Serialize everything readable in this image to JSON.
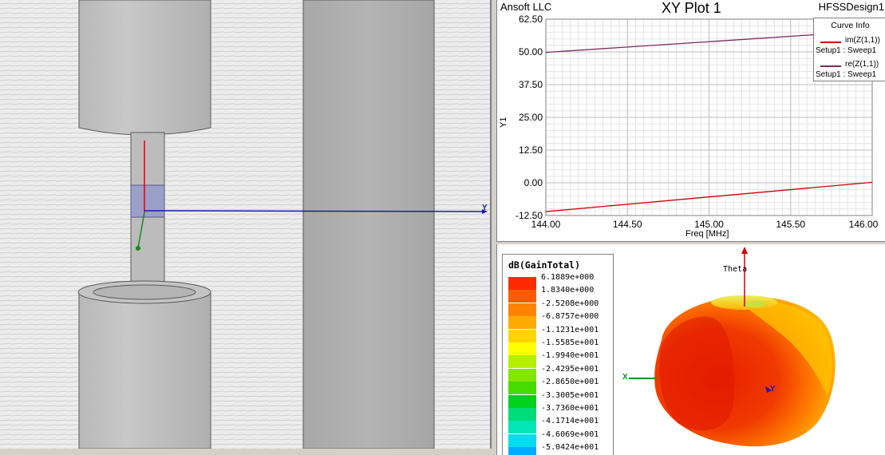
{
  "model_view": {
    "axis_y_label": "Y"
  },
  "xy_plot": {
    "company": "Ansoft LLC",
    "title": "XY Plot 1",
    "design": "HFSSDesign1",
    "ylabel": "Y1",
    "xlabel": "Freq [MHz]",
    "legend": {
      "title": "Curve Info",
      "entries": [
        {
          "name": "im(Z(1,1))",
          "sub": "Setup1 : Sweep1",
          "color": "#cc0000"
        },
        {
          "name": "re(Z(1,1))",
          "sub": "Setup1 : Sweep1",
          "color": "#7a2a5a"
        }
      ]
    },
    "y_ticks": [
      "62.50",
      "50.00",
      "37.50",
      "25.00",
      "12.50",
      "0.00",
      "-12.50"
    ],
    "x_ticks": [
      "144.00",
      "144.50",
      "145.00",
      "145.50",
      "146.00"
    ]
  },
  "chart_data": {
    "type": "line",
    "title": "XY Plot 1",
    "xlabel": "Freq [MHz]",
    "ylabel": "Y1",
    "xlim": [
      144.0,
      146.0
    ],
    "ylim": [
      -12.5,
      62.5
    ],
    "grid": true,
    "legend_position": "top-right",
    "series": [
      {
        "name": "im(Z(1,1))",
        "color": "#cc0000",
        "x": [
          144.0,
          146.0
        ],
        "y": [
          -11.0,
          0.2
        ]
      },
      {
        "name": "re(Z(1,1))",
        "color": "#7a2a5a",
        "x": [
          144.0,
          146.0
        ],
        "y": [
          49.8,
          58.0
        ]
      }
    ]
  },
  "polar_view": {
    "colorbar_title": "dB(GainTotal)",
    "theta_label": "Theta",
    "x_axis_label": "X",
    "y_axis_label": "Y",
    "levels": [
      {
        "label": "6.1889e+000",
        "color": "#ff2a00"
      },
      {
        "label": "1.8340e+000",
        "color": "#ff5a00"
      },
      {
        "label": "-2.5208e+000",
        "color": "#ff8200"
      },
      {
        "label": "-6.8757e+000",
        "color": "#ffaa00"
      },
      {
        "label": "-1.1231e+001",
        "color": "#ffd400"
      },
      {
        "label": "-1.5585e+001",
        "color": "#ffff00"
      },
      {
        "label": "-1.9940e+001",
        "color": "#b4f000"
      },
      {
        "label": "-2.4295e+001",
        "color": "#82e600"
      },
      {
        "label": "-2.8650e+001",
        "color": "#46dc00"
      },
      {
        "label": "-3.3005e+001",
        "color": "#00d21e"
      },
      {
        "label": "-3.7360e+001",
        "color": "#00dc78"
      },
      {
        "label": "-4.1714e+001",
        "color": "#00e6b4"
      },
      {
        "label": "-4.6069e+001",
        "color": "#00dcf0"
      },
      {
        "label": "-5.0424e+001",
        "color": "#00aaff"
      }
    ]
  }
}
